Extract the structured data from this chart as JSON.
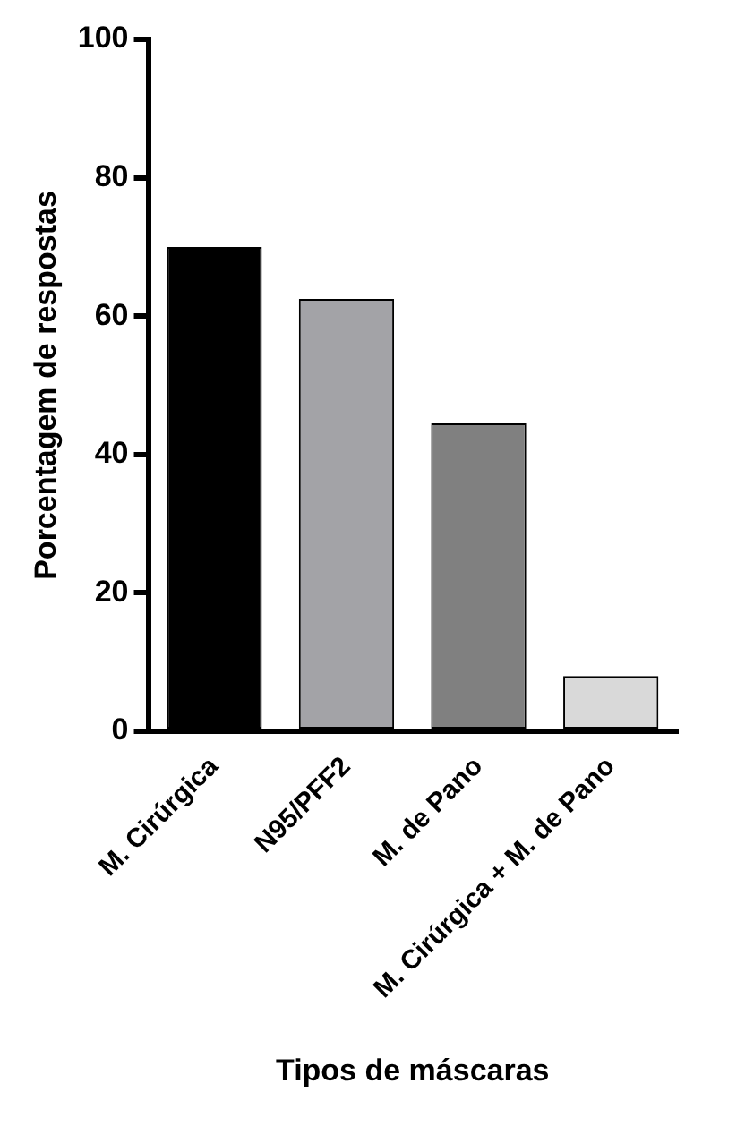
{
  "chart_data": {
    "type": "bar",
    "xlabel": "Tipos de máscaras",
    "ylabel": "Porcentagem de respostas",
    "categories": [
      "M. Cirúrgica",
      "N95/PFF2",
      "M. de Pano",
      "M. Cirúrgica + M. de Pano"
    ],
    "values": [
      70,
      62.5,
      44.5,
      8
    ],
    "colors": [
      "#000000",
      "#a3a3a7",
      "#808080",
      "#d9d9d9"
    ],
    "ylim": [
      0,
      100
    ],
    "yticks": [
      0,
      20,
      40,
      60,
      80,
      100
    ],
    "grid": false,
    "legend": false
  }
}
